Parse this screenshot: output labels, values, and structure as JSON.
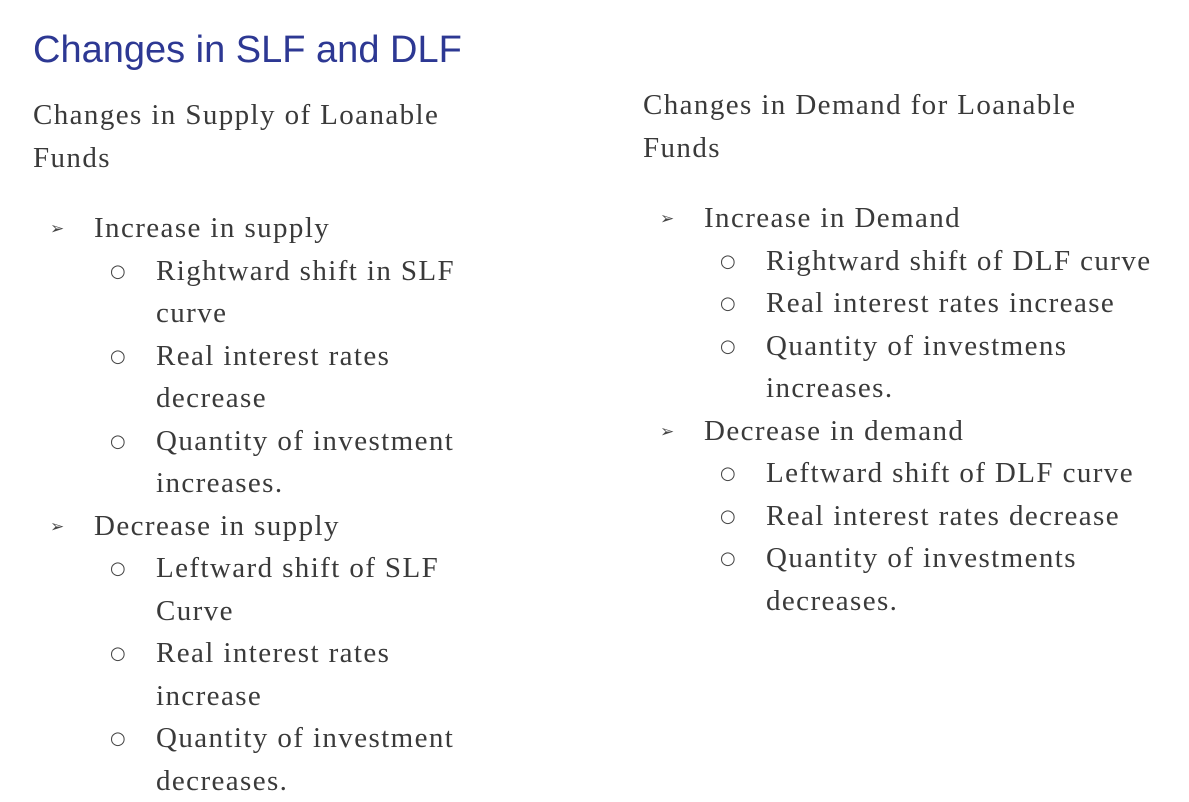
{
  "title": "Changes in SLF and DLF",
  "bullet_icons": {
    "level1": "➢",
    "level2": "○"
  },
  "columns": [
    {
      "heading": "Changes in Supply of Loanable Funds",
      "items": [
        {
          "label": "Increase in supply",
          "subitems": [
            "Rightward shift in SLF curve",
            "Real interest rates decrease",
            "Quantity of investment increases."
          ]
        },
        {
          "label": "Decrease in supply",
          "subitems": [
            "Leftward shift of SLF Curve",
            "Real interest rates increase",
            "Quantity of investment decreases."
          ]
        }
      ]
    },
    {
      "heading": "Changes in Demand for Loanable Funds",
      "items": [
        {
          "label": "Increase in Demand",
          "subitems": [
            "Rightward shift of DLF curve",
            "Real interest rates increase",
            "Quantity of investmens increases."
          ]
        },
        {
          "label": "Decrease in demand",
          "subitems": [
            "Leftward shift of DLF curve",
            "Real interest rates decrease",
            "Quantity of investments decreases."
          ]
        }
      ]
    }
  ]
}
